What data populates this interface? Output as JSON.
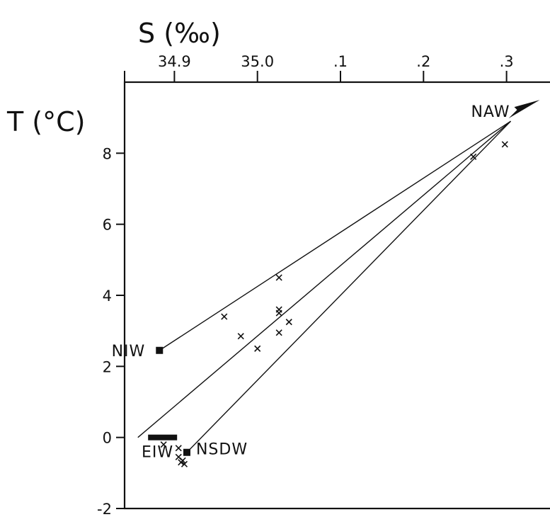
{
  "chart_data": {
    "type": "scatter",
    "xlabel": "S (‰)",
    "ylabel": "T (°C)",
    "x_axis_position": "top",
    "xlim": [
      34.84,
      35.36
    ],
    "ylim": [
      -2,
      10
    ],
    "x_ticks": [
      {
        "value": 34.9,
        "label": "34.9"
      },
      {
        "value": 35.0,
        "label": "35.0"
      },
      {
        "value": 35.1,
        "label": ".1"
      },
      {
        "value": 35.2,
        "label": ".2"
      },
      {
        "value": 35.3,
        "label": ".3"
      }
    ],
    "y_ticks": [
      {
        "value": -2,
        "label": "-2"
      },
      {
        "value": 0,
        "label": "0"
      },
      {
        "value": 2,
        "label": "2"
      },
      {
        "value": 4,
        "label": "4"
      },
      {
        "value": 6,
        "label": "6"
      },
      {
        "value": 8,
        "label": "8"
      }
    ],
    "grid": false,
    "observations": [
      {
        "x": 34.96,
        "y": 3.4
      },
      {
        "x": 35.026,
        "y": 4.5
      },
      {
        "x": 35.026,
        "y": 3.6
      },
      {
        "x": 35.026,
        "y": 3.5
      },
      {
        "x": 35.038,
        "y": 3.25
      },
      {
        "x": 35.026,
        "y": 2.95
      },
      {
        "x": 34.98,
        "y": 2.85
      },
      {
        "x": 35.0,
        "y": 2.5
      },
      {
        "x": 35.26,
        "y": 7.9
      },
      {
        "x": 35.298,
        "y": 8.25
      },
      {
        "x": 34.887,
        "y": -0.2
      },
      {
        "x": 34.905,
        "y": -0.3
      },
      {
        "x": 34.905,
        "y": -0.55
      },
      {
        "x": 34.908,
        "y": -0.7
      },
      {
        "x": 34.912,
        "y": -0.75
      },
      {
        "x": 34.91,
        "y": -0.65
      }
    ],
    "water_masses": [
      {
        "label": "NIW",
        "x": 34.882,
        "y": 2.45,
        "marker": "square",
        "label_side": "left"
      },
      {
        "label": "EIW",
        "x": 34.87,
        "y": 0.0,
        "marker": "bar",
        "label_side": "below-left"
      },
      {
        "label": "NSDW",
        "x": 34.915,
        "y": -0.42,
        "marker": "square",
        "label_side": "right"
      },
      {
        "label": "NAW",
        "x": 35.34,
        "y": 9.5,
        "marker": "arrow",
        "label_side": "left"
      }
    ],
    "mixing_lines": [
      {
        "from": [
          34.882,
          2.45
        ],
        "to": [
          35.305,
          8.9
        ]
      },
      {
        "from": [
          34.856,
          0.0
        ],
        "to": [
          35.305,
          8.9
        ]
      },
      {
        "from": [
          34.915,
          -0.42
        ],
        "to": [
          35.305,
          8.9
        ]
      }
    ]
  }
}
